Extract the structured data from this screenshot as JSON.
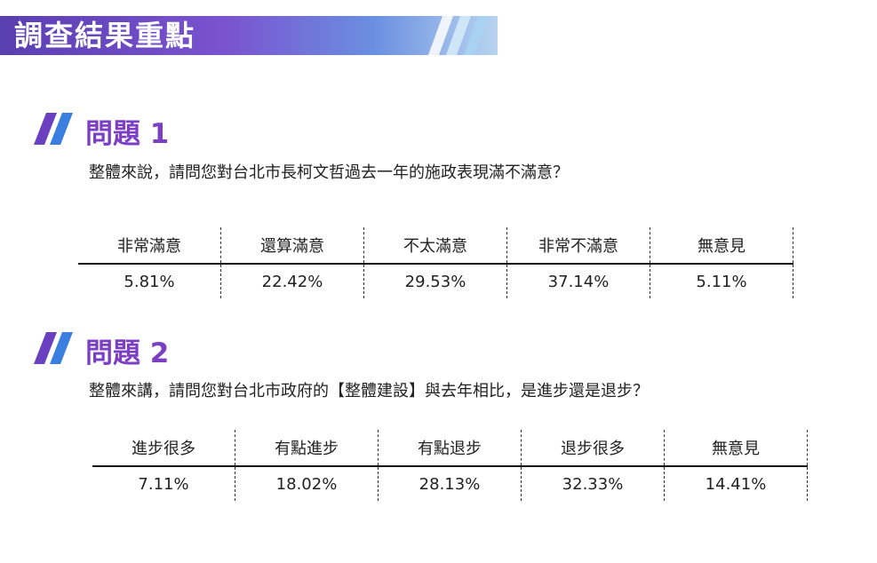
{
  "header": {
    "title": "調查結果重點"
  },
  "questions": [
    {
      "label": "問題 1",
      "text": "整體來說，請問您對台北市長柯文哲過去一年的施政表現滿不滿意？",
      "columns": [
        "非常滿意",
        "還算滿意",
        "不太滿意",
        "非常不滿意",
        "無意見"
      ],
      "values": [
        "5.81%",
        "22.42%",
        "29.53%",
        "37.14%",
        "5.11%"
      ]
    },
    {
      "label": "問題 2",
      "text": "整體來講，請問您對台北市政府的【整體建設】與去年相比，是進步還是退步？",
      "columns": [
        "進步很多",
        "有點進步",
        "有點退步",
        "退步很多",
        "無意見"
      ],
      "values": [
        "7.11%",
        "18.02%",
        "28.13%",
        "32.33%",
        "14.41%"
      ]
    }
  ],
  "colors": {
    "accent": "#7b3fc4",
    "mark_purple": "#6a3fc0",
    "mark_blue": "#3a7fe0"
  },
  "icons": {
    "question_mark": "double-slash-icon",
    "header_decoration": "stripes-icon"
  }
}
